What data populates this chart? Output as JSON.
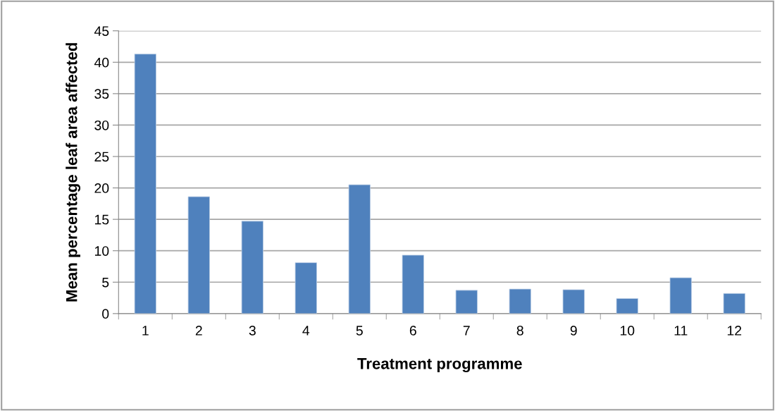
{
  "chart_data": {
    "type": "bar",
    "xlabel": "Treatment programme",
    "ylabel": "Mean percentage leaf area affected",
    "categories": [
      "1",
      "2",
      "3",
      "4",
      "5",
      "6",
      "7",
      "8",
      "9",
      "10",
      "11",
      "12"
    ],
    "values": [
      41.3,
      18.6,
      14.7,
      8.1,
      20.5,
      9.3,
      3.7,
      3.9,
      3.8,
      2.4,
      5.7,
      3.2
    ],
    "color": "#4f81bd",
    "ylim": [
      0,
      45
    ],
    "yticks": [
      0,
      5,
      10,
      15,
      20,
      25,
      30,
      35,
      40,
      45
    ],
    "grid": "y",
    "legend": false
  }
}
